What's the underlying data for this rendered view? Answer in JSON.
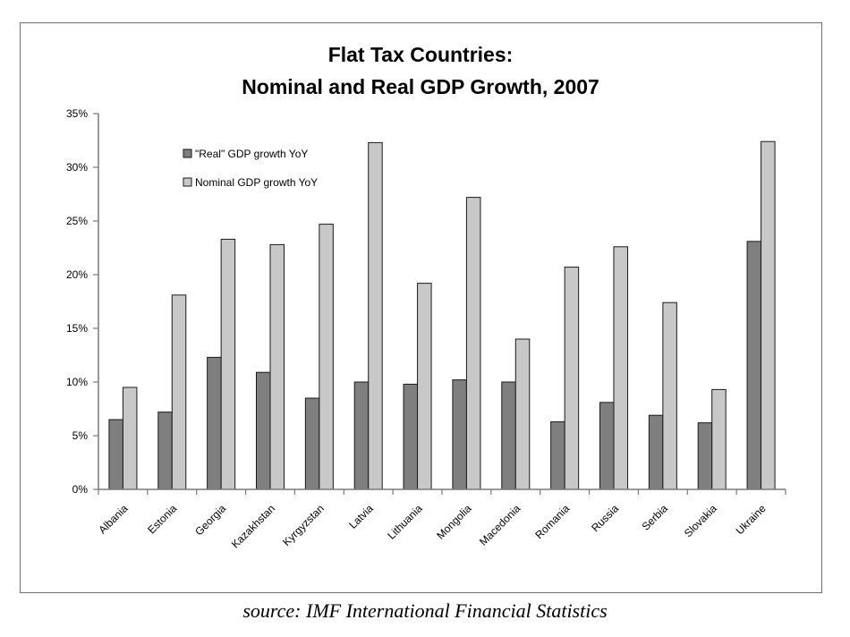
{
  "footer": {
    "source": "source: IMF International Financial Statistics"
  },
  "colors": {
    "real": "#7f7f7f",
    "nominal": "#c8c8c8",
    "bar_stroke": "#1a1a1a",
    "axis": "#7a7a7a",
    "frame": "#6d6d6d"
  },
  "chart_data": {
    "type": "bar",
    "title_line1": "Flat Tax Countries:",
    "title_line2": "Nominal and Real GDP Growth, 2007",
    "xlabel": "",
    "ylabel": "",
    "ylim": [
      0,
      35
    ],
    "yticks": [
      0,
      5,
      10,
      15,
      20,
      25,
      30,
      35
    ],
    "ytick_labels": [
      "0%",
      "5%",
      "10%",
      "15%",
      "20%",
      "25%",
      "30%",
      "35%"
    ],
    "grid": false,
    "legend_position": "top-left",
    "categories": [
      "Albania",
      "Estonia",
      "Georgia",
      "Kazakhstan",
      "Kyrgyzstan",
      "Latvia",
      "Lithuania",
      "Mongolia",
      "Macedonia",
      "Romania",
      "Russia",
      "Serbia",
      "Slovakia",
      "Ukraine"
    ],
    "series": [
      {
        "name": "\"Real\" GDP growth YoY",
        "values": [
          6.5,
          7.2,
          12.3,
          10.9,
          8.5,
          10.0,
          9.8,
          10.2,
          10.0,
          6.3,
          8.1,
          6.9,
          6.2,
          23.1
        ]
      },
      {
        "name": "Nominal GDP growth YoY",
        "values": [
          9.5,
          18.1,
          23.3,
          22.8,
          24.7,
          32.3,
          19.2,
          27.2,
          14.0,
          20.7,
          22.6,
          17.4,
          9.3,
          32.4
        ]
      }
    ]
  }
}
